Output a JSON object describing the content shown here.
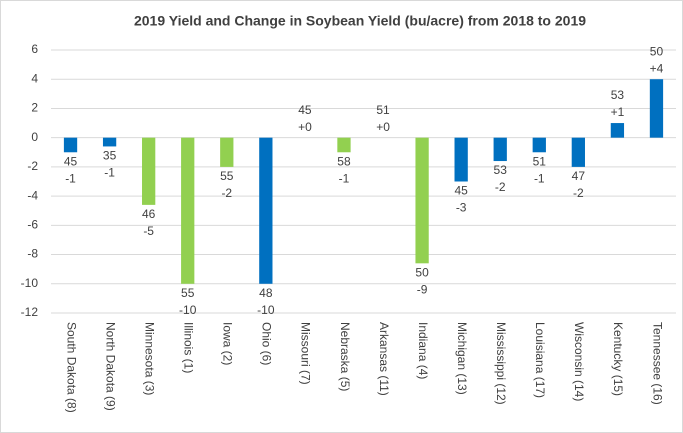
{
  "chart_data": {
    "type": "bar",
    "title": "2019 Yield and Change in Soybean Yield (bu/acre) from 2018 to 2019",
    "categories": [
      "South Dakota (8)",
      "North Dakota (9)",
      "Minnesota (3)",
      "Illinois (1)",
      "Iowa (2)",
      "Ohio (6)",
      "Missouri (7)",
      "Nebraska (5)",
      "Arkansas (11)",
      "Indiana (4)",
      "Michigan (13)",
      "Mississippi (12)",
      "Louisiana (17)",
      "Wisconsin (14)",
      "Kentucky (15)",
      "Tennessee (16)"
    ],
    "values": [
      -1,
      -0.6,
      -4.6,
      -10,
      -2,
      -10,
      0,
      -1,
      0,
      -8.6,
      -3,
      -1.6,
      -1,
      -2,
      1,
      4
    ],
    "value_labels": [
      "-1",
      "-1",
      "-5",
      "-10",
      "-2",
      "-10",
      "+0",
      "-1",
      "+0",
      "-9",
      "-3",
      "-2",
      "-1",
      "-2",
      "+1",
      "+4"
    ],
    "yields": [
      45,
      35,
      46,
      55,
      55,
      48,
      45,
      58,
      51,
      50,
      45,
      53,
      51,
      47,
      53,
      50
    ],
    "colors": [
      "#0070c0",
      "#0070c0",
      "#92d050",
      "#92d050",
      "#92d050",
      "#0070c0",
      "#0070c0",
      "#92d050",
      "#0070c0",
      "#92d050",
      "#0070c0",
      "#0070c0",
      "#0070c0",
      "#0070c0",
      "#0070c0",
      "#0070c0"
    ],
    "ylim": [
      -12,
      6
    ],
    "yticks": [
      -12,
      -10,
      -8,
      -6,
      -4,
      -2,
      0,
      2,
      4,
      6
    ],
    "grid": true
  }
}
